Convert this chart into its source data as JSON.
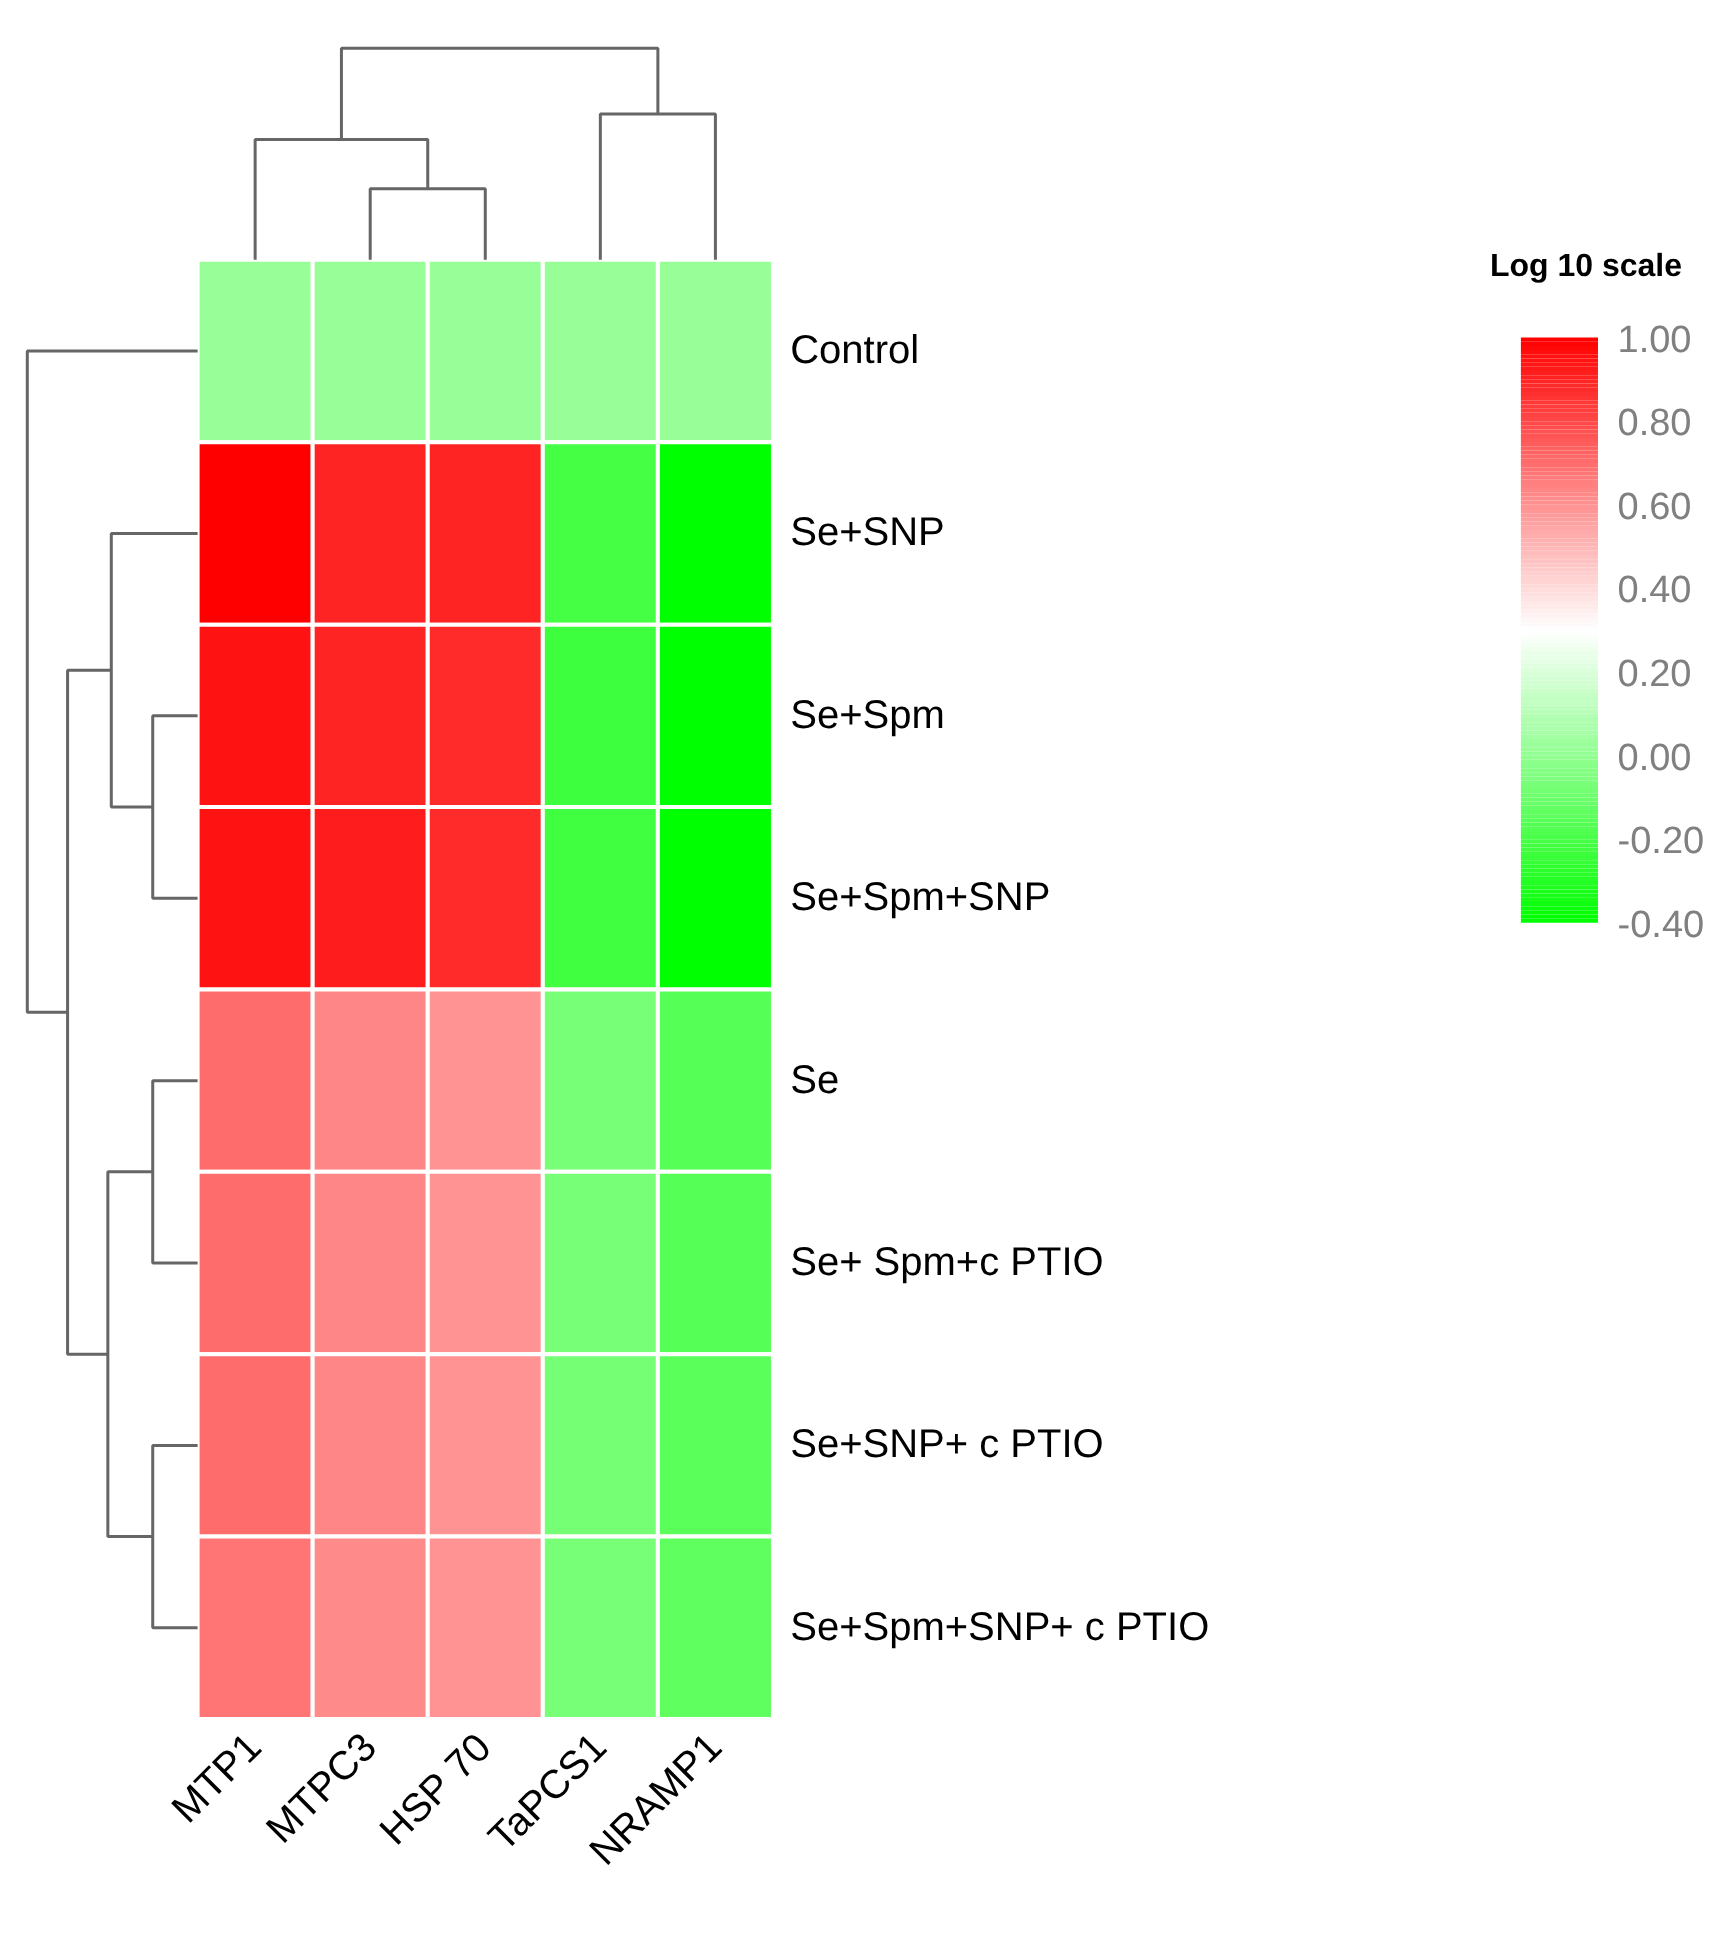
{
  "chart_data": {
    "type": "heatmap",
    "clabel": "Log 10 scale",
    "categories": [
      "MTP1",
      "MTPC3",
      "HSP 70",
      "TaPCS1",
      "NRAMP1"
    ],
    "y_categories": [
      "Control",
      "Se+SNP",
      "Se+Spm",
      "Se+Spm+SNP",
      "Se",
      "Se+ Spm+c PTIO",
      "Se+SNP+ c PTIO",
      "Se+Spm+SNP+ c PTIO"
    ],
    "cells": [
      [
        0.02,
        0.02,
        0.02,
        0.02,
        0.02
      ],
      [
        1.0,
        0.9,
        0.9,
        -0.21,
        -0.4
      ],
      [
        0.95,
        0.9,
        0.88,
        -0.23,
        -0.4
      ],
      [
        0.95,
        0.92,
        0.88,
        -0.22,
        -0.4
      ],
      [
        0.7,
        0.63,
        0.6,
        -0.07,
        -0.16
      ],
      [
        0.7,
        0.63,
        0.6,
        -0.07,
        -0.16
      ],
      [
        0.7,
        0.63,
        0.6,
        -0.08,
        -0.15
      ],
      [
        0.68,
        0.62,
        0.6,
        -0.07,
        -0.14
      ]
    ],
    "clim": [
      -0.4,
      1.0
    ],
    "cticks": [
      {
        "value": 1.0,
        "label": "1.00"
      },
      {
        "value": 0.8,
        "label": "0.80"
      },
      {
        "value": 0.6,
        "label": "0.60"
      },
      {
        "value": 0.4,
        "label": "0.40"
      },
      {
        "value": 0.2,
        "label": "0.20"
      },
      {
        "value": 0.0,
        "label": "0.00"
      },
      {
        "value": -0.2,
        "label": "-0.20"
      },
      {
        "value": -0.4,
        "label": "-0.40"
      }
    ],
    "colors": [
      "#00ff00",
      "#ffffff",
      "#ff0000"
    ]
  }
}
